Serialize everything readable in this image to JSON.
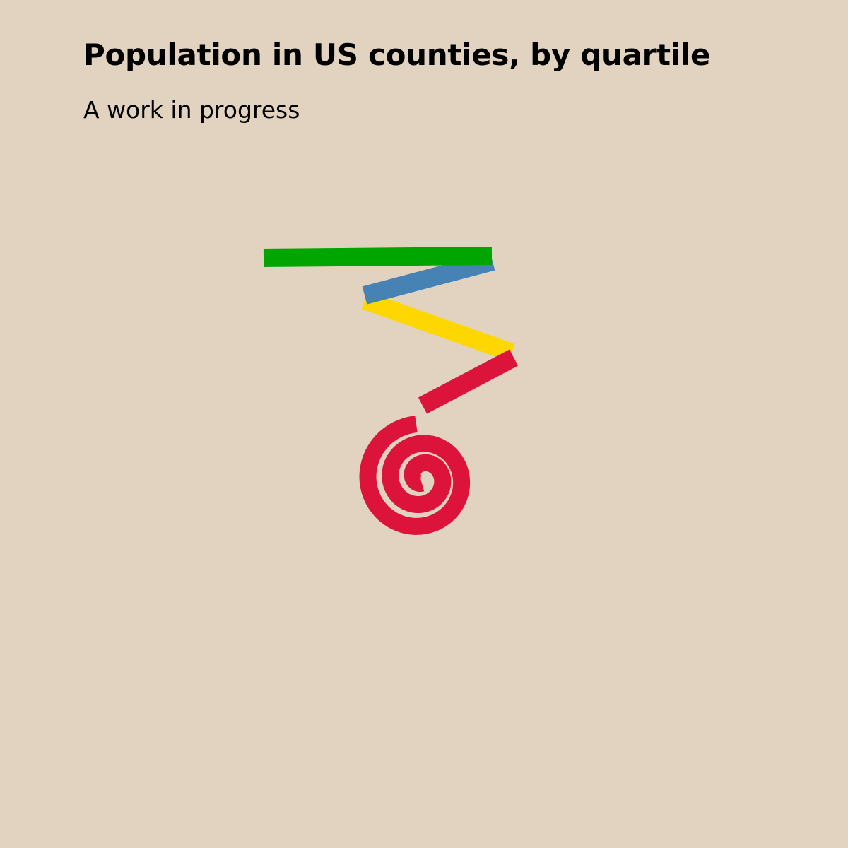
{
  "header": {
    "title": "Population in US counties, by quartile",
    "subtitle": "A work in progress"
  },
  "chart_data": {
    "type": "line",
    "title": "Population in US counties, by quartile",
    "subtitle": "A work in progress",
    "axes": "none",
    "grid": false,
    "legend": "none",
    "series": [
      {
        "key": "q1",
        "color": "#00a500"
      },
      {
        "key": "q2",
        "color": "#4682b4"
      },
      {
        "key": "q3",
        "color": "#ffd700"
      },
      {
        "key": "q4",
        "color": "#dc143c"
      }
    ]
  }
}
